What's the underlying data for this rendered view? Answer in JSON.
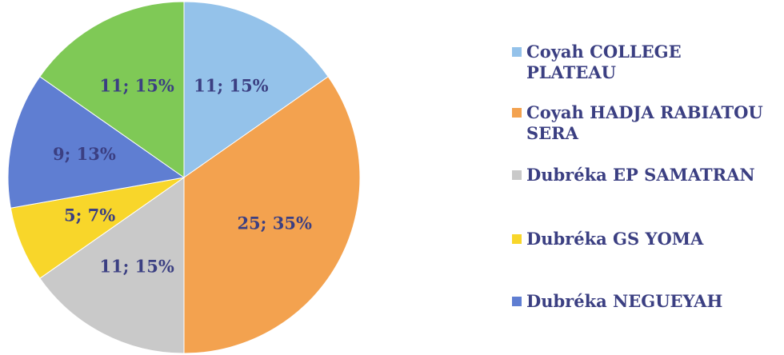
{
  "chart_data": {
    "type": "pie",
    "categories": [
      "Coyah COLLEGE PLATEAU",
      "Coyah HADJA RABIATOU SERA",
      "Dubréka EP SAMATRAN",
      "Dubréka GS YOMA",
      "Dubréka NEGUEYAH",
      null
    ],
    "values": [
      11,
      25,
      11,
      5,
      9,
      11
    ],
    "value_labels": [
      "11; 15%",
      "25; 35%",
      "11; 15%",
      "5; 7%",
      "9; 13%",
      "11; 15%"
    ],
    "colors": [
      "#94c2ea",
      "#f3a24f",
      "#c9c9c9",
      "#f8d62a",
      "#5f7ed2",
      "#7fc956"
    ],
    "legend": "right"
  }
}
